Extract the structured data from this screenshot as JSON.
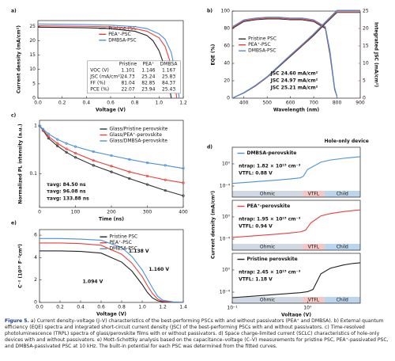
{
  "chart_data": [
    {
      "type": "line",
      "label": "a)",
      "xlabel": "Voltage (V)",
      "ylabel": "Current density (mA/cm²)",
      "xlim": [
        0,
        1.2
      ],
      "xticks": [
        {
          "value": 0,
          "label": "0.0"
        },
        0.2,
        0.4,
        0.6,
        0.8,
        {
          "value": 1,
          "label": "1.0"
        },
        1.2
      ],
      "ylim": [
        0,
        27
      ],
      "yticks": [
        0,
        5,
        10,
        15,
        20,
        25
      ],
      "legend": "upper right",
      "series": [
        {
          "name": "Pristine PSC",
          "color": "#222222",
          "x": [
            0,
            0.2,
            0.4,
            0.6,
            0.8,
            0.9,
            0.95,
            1.0,
            1.05,
            1.08,
            1.101
          ],
          "values": [
            24.7,
            24.6,
            24.5,
            24.2,
            23.3,
            21.8,
            20.0,
            16.5,
            10.5,
            5.0,
            0
          ]
        },
        {
          "name": "PEA⁺-PSC",
          "color": "#e8413c",
          "x": [
            0,
            0.2,
            0.4,
            0.6,
            0.8,
            0.9,
            1.0,
            1.05,
            1.1,
            1.13,
            1.146
          ],
          "values": [
            25.2,
            25.1,
            25.0,
            24.8,
            24.2,
            23.3,
            21.0,
            18.0,
            11.5,
            5.5,
            0
          ]
        },
        {
          "name": "DMBSA-PSC",
          "color": "#4a90d9",
          "x": [
            0,
            0.2,
            0.4,
            0.6,
            0.8,
            0.9,
            1.0,
            1.05,
            1.1,
            1.14,
            1.167
          ],
          "values": [
            25.8,
            25.7,
            25.6,
            25.4,
            24.9,
            24.2,
            22.4,
            20.5,
            16.0,
            8.0,
            0
          ]
        }
      ],
      "table": {
        "header": [
          "Pristine",
          "PEA⁺",
          "DMBSA"
        ],
        "rows": [
          [
            "VOC (V)",
            "1.101",
            "1.146",
            "1.167"
          ],
          [
            "JSC (mA/cm²)",
            "24.73",
            "25.24",
            "25.83"
          ],
          [
            "FF (%)",
            "81.04",
            "82.85",
            "84.37"
          ],
          [
            "PCE (%)",
            "22.07",
            "23.94",
            "25.43"
          ]
        ]
      }
    },
    {
      "type": "line",
      "label": "b)",
      "xlabel": "Wavelength (nm)",
      "ylabel": "EQE (%)",
      "y2label": "Integrated JSC (mA/cm²)",
      "xlim": [
        350,
        900
      ],
      "xticks": [
        400,
        500,
        600,
        700,
        800,
        900
      ],
      "ylim": [
        0,
        100
      ],
      "yticks": [
        0,
        20,
        40,
        60,
        80,
        100
      ],
      "y2lim": [
        0,
        25
      ],
      "y2ticks": [
        0,
        5,
        10,
        15,
        20,
        25
      ],
      "y2color": "#e8413c",
      "legend": "center left",
      "series": [
        {
          "name": "Pristine PSC",
          "color": "#333333",
          "x": [
            350,
            400,
            450,
            500,
            550,
            600,
            650,
            700,
            750,
            770,
            790,
            800
          ],
          "values": [
            80,
            88,
            90,
            91,
            91,
            90,
            90,
            88,
            80,
            50,
            10,
            2
          ]
        },
        {
          "name": "PEA⁺-PSC",
          "color": "#e8413c",
          "x": [
            350,
            400,
            450,
            500,
            550,
            600,
            650,
            700,
            750,
            770,
            790,
            800
          ],
          "values": [
            81,
            89,
            91,
            92,
            92,
            91,
            91,
            89,
            81,
            52,
            11,
            2
          ]
        },
        {
          "name": "DMBSA-PSC",
          "color": "#4a90d9",
          "x": [
            350,
            400,
            450,
            500,
            550,
            600,
            650,
            700,
            750,
            770,
            790,
            800
          ],
          "values": [
            82,
            90,
            92,
            93,
            93,
            92,
            92,
            90,
            82,
            54,
            12,
            2
          ]
        },
        {
          "color": "#333333",
          "axis": "y2",
          "x": [
            350,
            400,
            450,
            500,
            550,
            600,
            650,
            700,
            750,
            800,
            850,
            900
          ],
          "values": [
            0,
            1.5,
            3.5,
            6,
            9,
            12,
            15,
            18,
            21.4,
            24.6,
            24.6,
            24.6
          ]
        },
        {
          "color": "#e8413c",
          "axis": "y2",
          "x": [
            350,
            400,
            450,
            500,
            550,
            600,
            650,
            700,
            750,
            800,
            850,
            900
          ],
          "values": [
            0,
            1.6,
            3.6,
            6.1,
            9.2,
            12.2,
            15.2,
            18.3,
            21.7,
            24.97,
            24.97,
            24.97
          ]
        },
        {
          "color": "#4a90d9",
          "axis": "y2",
          "x": [
            350,
            400,
            450,
            500,
            550,
            600,
            650,
            700,
            750,
            800,
            850,
            900
          ],
          "values": [
            0,
            1.6,
            3.7,
            6.2,
            9.3,
            12.4,
            15.4,
            18.5,
            21.9,
            25.21,
            25.21,
            25.21
          ]
        }
      ],
      "annotations": [
        {
          "text": "JSC 24.60 mA/cm²",
          "color": "#222222"
        },
        {
          "text": "JSC 24.97 mA/cm²",
          "color": "#e8413c"
        },
        {
          "text": "JSC 25.21 mA/cm²",
          "color": "#4a90d9"
        }
      ]
    },
    {
      "type": "line",
      "label": "c)",
      "xlabel": "Time (ns)",
      "ylabel": "Normalized PL intensity (a.u.)",
      "markers": true,
      "xlim": [
        0,
        400
      ],
      "xticks": [
        0,
        100,
        200,
        300,
        400
      ],
      "ylim": [
        0.02,
        1.3
      ],
      "ylog": true,
      "yticks": [
        0.1,
        1
      ],
      "legend": "upper right",
      "series": [
        {
          "name": "Glass/Pristine perovskite",
          "color": "#333333",
          "x": [
            0,
            10,
            25,
            50,
            75,
            100,
            150,
            200,
            250,
            300,
            350,
            400
          ],
          "values": [
            1,
            0.8,
            0.55,
            0.38,
            0.28,
            0.22,
            0.15,
            0.11,
            0.08,
            0.06,
            0.045,
            0.035
          ]
        },
        {
          "name": "Glass/PEA⁺-perovskite",
          "color": "#e8413c",
          "x": [
            0,
            10,
            25,
            50,
            75,
            100,
            150,
            200,
            250,
            300,
            350,
            400
          ],
          "values": [
            1,
            0.82,
            0.6,
            0.43,
            0.33,
            0.27,
            0.19,
            0.145,
            0.11,
            0.09,
            0.075,
            0.065
          ]
        },
        {
          "name": "Glass/DMBSA-perovskite",
          "color": "#4a90d9",
          "x": [
            0,
            10,
            25,
            50,
            75,
            100,
            150,
            200,
            250,
            300,
            350,
            400
          ],
          "values": [
            1,
            0.85,
            0.68,
            0.52,
            0.43,
            0.37,
            0.29,
            0.24,
            0.2,
            0.17,
            0.15,
            0.13
          ]
        }
      ],
      "annotations": [
        {
          "text": "τavg: 84.50 ns",
          "color": "#222222"
        },
        {
          "text": "τavg: 96.08 ns",
          "color": "#e8413c"
        },
        {
          "text": "τavg: 133.88 ns",
          "color": "#4a90d9"
        }
      ]
    },
    {
      "type": "line",
      "label": "d)",
      "ylabel": "Current density (mA/cm²)",
      "xlim": [
        0.1,
        5
      ],
      "xlog": true,
      "ylim": [
        1e-06,
        1000
      ],
      "ylog": true,
      "yticks": [
        {
          "value": 0.0001,
          "label": "10⁻⁴"
        },
        {
          "value": 1,
          "label": "10⁰"
        }
      ],
      "legend": "upper left",
      "regions": [
        "Ohmic",
        "VTFL",
        "Child"
      ],
      "series": [
        {
          "name": "DMBSA-perovskite",
          "color": "#4a90d9",
          "x": [
            0.1,
            0.2,
            0.4,
            0.6,
            0.8,
            0.88,
            1.0,
            1.5,
            2,
            3,
            4,
            5
          ],
          "values": [
            0.0003,
            0.0006,
            0.0012,
            0.002,
            0.003,
            0.006,
            0.1,
            2,
            5,
            10,
            15,
            20
          ]
        }
      ],
      "annotations": [
        {
          "text": "Hole-only device",
          "color": "#222222"
        },
        {
          "text": "ntrap: 1.82 × 10¹⁵ cm⁻³",
          "color": "#222222"
        },
        {
          "text": "VTFL: 0.88 V",
          "color": "#222222"
        }
      ]
    },
    {
      "type": "line",
      "xlim": [
        0.1,
        5
      ],
      "xlog": true,
      "ylim": [
        1e-06,
        1000
      ],
      "ylog": true,
      "yticks": [
        {
          "value": 0.0001,
          "label": "10⁻⁴"
        },
        {
          "value": 1,
          "label": "10⁰"
        }
      ],
      "legend": "upper left",
      "regions": [
        "Ohmic",
        "VTFL",
        "Child"
      ],
      "series": [
        {
          "name": "PEA⁺-perovskite",
          "color": "#e8413c",
          "x": [
            0.1,
            0.2,
            0.4,
            0.6,
            0.8,
            0.94,
            1.1,
            1.5,
            2,
            3,
            4,
            5
          ],
          "values": [
            0.0002,
            0.0004,
            0.0008,
            0.0013,
            0.002,
            0.004,
            0.08,
            1.5,
            4,
            9,
            14,
            18
          ]
        }
      ],
      "annotations": [
        {
          "text": "ntrap: 1.95 × 10¹⁵ cm⁻³",
          "color": "#222222"
        },
        {
          "text": "VTFL: 0.94 V",
          "color": "#222222"
        }
      ]
    },
    {
      "type": "line",
      "xlabel": "Voltage (V)",
      "xlim": [
        0.1,
        5
      ],
      "xlog": true,
      "xticks": [
        {
          "value": 0.1,
          "label": "10⁻¹"
        },
        {
          "value": 1,
          "label": "10⁰"
        }
      ],
      "ylim": [
        1e-06,
        1000
      ],
      "ylog": true,
      "yticks": [
        {
          "value": 0.0001,
          "label": "10⁻⁴"
        },
        {
          "value": 1,
          "label": "10⁰"
        }
      ],
      "legend": "upper left",
      "regions": [
        "Ohmic",
        "VTFL",
        "Child"
      ],
      "series": [
        {
          "name": "Pristine perovskite",
          "color": "#222222",
          "x": [
            0.1,
            0.2,
            0.4,
            0.6,
            0.8,
            1.0,
            1.18,
            1.5,
            2,
            3,
            4,
            5
          ],
          "values": [
            1e-05,
            2e-05,
            4e-05,
            6e-05,
            8e-05,
            0.00012,
            0.0003,
            0.2,
            2,
            8,
            15,
            20
          ]
        }
      ],
      "annotations": [
        {
          "text": "ntrap: 2.45 × 10¹⁵ cm⁻³",
          "color": "#222222"
        },
        {
          "text": "VTFL: 1.18 V",
          "color": "#222222"
        }
      ]
    },
    {
      "type": "line",
      "label": "e)",
      "xlabel": "Voltage (V)",
      "ylabel": "C⁻² (10¹⁶ F⁻²cm⁴)",
      "xlim": [
        0,
        1.4
      ],
      "xticks": [
        {
          "value": 0,
          "label": "0.0"
        },
        0.2,
        0.4,
        0.6,
        0.8,
        {
          "value": 1,
          "label": "1.0"
        },
        1.2,
        1.4
      ],
      "ylim": [
        0,
        6.5
      ],
      "yticks": [
        0,
        2,
        4,
        6
      ],
      "legend": "upper right",
      "series": [
        {
          "name": "Pristine PSC",
          "color": "#222222",
          "x": [
            0,
            0.2,
            0.4,
            0.6,
            0.8,
            0.9,
            1.0,
            1.05,
            1.1,
            1.15,
            1.2,
            1.3,
            1.4
          ],
          "values": [
            4.6,
            4.6,
            4.55,
            4.4,
            3.6,
            2.8,
            1.6,
            0.9,
            0.4,
            0.15,
            0.05,
            0.02,
            0.02
          ]
        },
        {
          "name": "PEA⁺-PSC",
          "color": "#e8413c",
          "x": [
            0,
            0.2,
            0.4,
            0.6,
            0.8,
            0.9,
            1.0,
            1.05,
            1.1,
            1.15,
            1.2,
            1.3,
            1.4
          ],
          "values": [
            5.3,
            5.3,
            5.25,
            5.1,
            4.3,
            3.5,
            2.3,
            1.5,
            0.8,
            0.3,
            0.1,
            0.03,
            0.02
          ]
        },
        {
          "name": "DMBSA-PSC",
          "color": "#4a90d9",
          "x": [
            0,
            0.2,
            0.4,
            0.6,
            0.8,
            0.9,
            1.0,
            1.05,
            1.1,
            1.15,
            1.2,
            1.3,
            1.4
          ],
          "values": [
            5.7,
            5.7,
            5.65,
            5.55,
            4.9,
            4.1,
            2.9,
            2.1,
            1.3,
            0.55,
            0.2,
            0.05,
            0.02
          ]
        }
      ],
      "annotations": [
        {
          "text": "1.094 V",
          "color": "#222222"
        },
        {
          "text": "1.138 V",
          "color": "#e8413c"
        },
        {
          "text": "1.160 V",
          "color": "#4a90d9"
        }
      ]
    }
  ],
  "caption": {
    "label": "Figure 5.",
    "text": "a) Current density–voltage (J–V) characteristics of the best-performing PSCs with and without passivators (PEA⁺ and DMBSA). b) External quantum efficiency (EQE) spectra and integrated short-circuit current density (JSC) of the best-performing PSCs with and without passivators. c) Time-resolved photoluminescence (TRPL) spectra of glass/perovskite films with or without passivators. d) Space charge-limited current (SCLC) characteristics of hole-only devices with and without passivators. e) Mott–Schottky analysis based on the capacitance–voltage (C–V) measurements for pristine PSC, PEA⁺-passivated PSC, and DMBSA-passivated PSC at 10 kHz. The built-in potential for each PSC was determined from the fitted curves."
  }
}
